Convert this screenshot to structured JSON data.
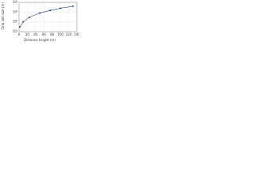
{
  "chart_data": {
    "type": "line",
    "xlabel": "Distance height (m)",
    "ylabel": "Grid cell size (m)",
    "x": [
      2,
      10,
      25,
      50,
      75,
      100,
      130
    ],
    "series": [
      {
        "name": "cell size",
        "color": "#1f3f7f",
        "values": [
          3,
          10,
          30,
          80,
          150,
          250,
          400
        ]
      }
    ],
    "xlim": [
      0,
      140
    ],
    "xticks": [
      0,
      20,
      40,
      60,
      80,
      100,
      120,
      140
    ],
    "ylim": [
      1,
      1000
    ],
    "ylog": true,
    "yticks": [
      {
        "value": 1,
        "label": "10⁰"
      },
      {
        "value": 10,
        "label": "10¹"
      },
      {
        "value": 100,
        "label": "10²"
      },
      {
        "value": 1000,
        "label": "10³"
      }
    ],
    "grid": true
  }
}
